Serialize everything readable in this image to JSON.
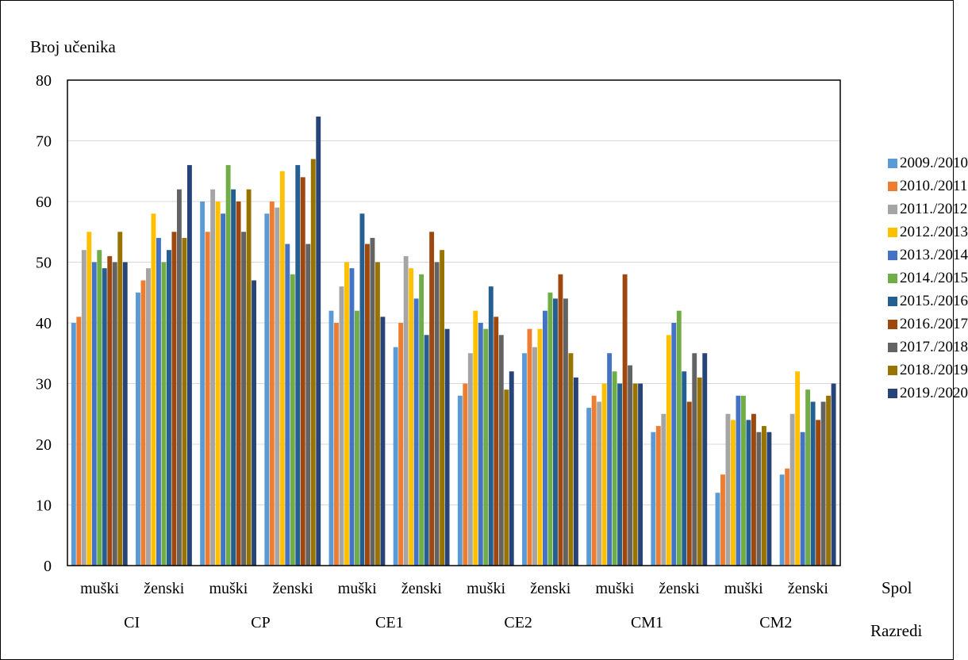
{
  "chart_data": {
    "type": "bar",
    "ylabel": "Broj učenika",
    "ylim": [
      0,
      80
    ],
    "yticks": [
      "0",
      "10",
      "20",
      "30",
      "40",
      "50",
      "60",
      "70",
      "80"
    ],
    "grid": true,
    "legend_position": "right",
    "x_level1_title": "Spol",
    "x_level2_title": "Razredi",
    "groups": [
      "CI",
      "CP",
      "CE1",
      "CE2",
      "CM1",
      "CM2"
    ],
    "categories": [
      "muški",
      "ženski",
      "muški",
      "ženski",
      "muški",
      "ženski",
      "muški",
      "ženski",
      "muški",
      "ženski",
      "muški",
      "ženski"
    ],
    "series": [
      {
        "name": "2009./2010",
        "color": "#5B9BD5",
        "values": [
          40,
          45,
          60,
          58,
          42,
          36,
          28,
          35,
          26,
          22,
          12,
          15
        ]
      },
      {
        "name": "2010./2011",
        "color": "#ED7D31",
        "values": [
          41,
          47,
          55,
          60,
          40,
          40,
          30,
          39,
          28,
          23,
          15,
          16
        ]
      },
      {
        "name": "2011./2012",
        "color": "#A5A5A5",
        "values": [
          52,
          49,
          62,
          59,
          46,
          51,
          35,
          36,
          27,
          25,
          25,
          25
        ]
      },
      {
        "name": "2012./2013",
        "color": "#FFC000",
        "values": [
          55,
          58,
          60,
          65,
          50,
          49,
          42,
          39,
          30,
          38,
          24,
          32
        ]
      },
      {
        "name": "2013./2014",
        "color": "#4472C4",
        "values": [
          50,
          54,
          58,
          53,
          49,
          44,
          40,
          42,
          35,
          40,
          28,
          22
        ]
      },
      {
        "name": "2014./2015",
        "color": "#70AD47",
        "values": [
          52,
          50,
          66,
          48,
          42,
          48,
          39,
          45,
          32,
          42,
          28,
          29
        ]
      },
      {
        "name": "2015./2016",
        "color": "#255E91",
        "values": [
          49,
          52,
          62,
          66,
          58,
          38,
          46,
          44,
          30,
          32,
          24,
          27
        ]
      },
      {
        "name": "2016./2017",
        "color": "#9E480E",
        "values": [
          51,
          55,
          60,
          64,
          53,
          55,
          41,
          48,
          48,
          27,
          25,
          24
        ]
      },
      {
        "name": "2017./2018",
        "color": "#636363",
        "values": [
          50,
          62,
          55,
          53,
          54,
          50,
          38,
          44,
          33,
          35,
          22,
          27
        ]
      },
      {
        "name": "2018./2019",
        "color": "#997300",
        "values": [
          55,
          54,
          62,
          67,
          50,
          52,
          29,
          35,
          30,
          31,
          23,
          28
        ]
      },
      {
        "name": "2019./2020",
        "color": "#264478",
        "values": [
          50,
          66,
          47,
          74,
          41,
          39,
          32,
          31,
          30,
          35,
          22,
          30
        ]
      }
    ]
  }
}
